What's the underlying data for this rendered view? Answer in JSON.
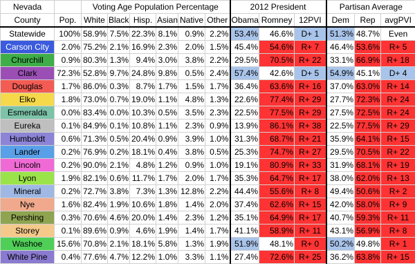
{
  "groups": {
    "state": "Nevada",
    "vap": "Voting Age Population Percentage",
    "pres": "2012 President",
    "partisan": "Partisan Average"
  },
  "columns": [
    "County",
    "Pop.",
    "White",
    "Black",
    "Hisp.",
    "Asian",
    "Native",
    "Other",
    "Obama",
    "Romney",
    "12PVI",
    "Dem",
    "Rep",
    "avgPVI"
  ],
  "colors": {
    "dem_fill": "#a9c4ea",
    "rep_fill": "#ff3333"
  },
  "rows": [
    {
      "county": "Statewide",
      "bg": "#ffffff",
      "fg": "#000000",
      "pop": "100%",
      "white": "58.9%",
      "black": "7.5%",
      "hisp": "22.3%",
      "asian": "8.1%",
      "native": "0.9%",
      "other": "2.2%",
      "obama": "53.4%",
      "romney": "46.6%",
      "pvi": "D+ 1",
      "dem": "51.3%",
      "rep": "48.7%",
      "avgpvi": "Even",
      "win": "D",
      "pvi_side": "D",
      "part_win": "D",
      "avg_side": "E"
    },
    {
      "county": "Carson City",
      "bg": "#3b5bde",
      "fg": "#ffffff",
      "pop": "2.0%",
      "white": "75.2%",
      "black": "2.1%",
      "hisp": "16.9%",
      "asian": "2.3%",
      "native": "2.0%",
      "other": "1.5%",
      "obama": "45.4%",
      "romney": "54.6%",
      "pvi": "R+ 7",
      "dem": "46.4%",
      "rep": "53.6%",
      "avgpvi": "R+ 5",
      "win": "R",
      "pvi_side": "R",
      "part_win": "R",
      "avg_side": "R"
    },
    {
      "county": "Churchill",
      "bg": "#3fae49",
      "fg": "#000000",
      "pop": "0.9%",
      "white": "80.3%",
      "black": "1.3%",
      "hisp": "9.4%",
      "asian": "3.0%",
      "native": "3.8%",
      "other": "2.2%",
      "obama": "29.5%",
      "romney": "70.5%",
      "pvi": "R+ 22",
      "dem": "33.1%",
      "rep": "66.9%",
      "avgpvi": "R+ 18",
      "win": "R",
      "pvi_side": "R",
      "part_win": "R",
      "avg_side": "R"
    },
    {
      "county": "Clark",
      "bg": "#9b4fb5",
      "fg": "#000000",
      "pop": "72.3%",
      "white": "52.8%",
      "black": "9.7%",
      "hisp": "24.8%",
      "asian": "9.8%",
      "native": "0.5%",
      "other": "2.4%",
      "obama": "57.4%",
      "romney": "42.6%",
      "pvi": "D+ 5",
      "dem": "54.9%",
      "rep": "45.1%",
      "avgpvi": "D+ 4",
      "win": "D",
      "pvi_side": "D",
      "part_win": "D",
      "avg_side": "D"
    },
    {
      "county": "Douglas",
      "bg": "#f25c54",
      "fg": "#000000",
      "pop": "1.7%",
      "white": "86.0%",
      "black": "0.3%",
      "hisp": "8.7%",
      "asian": "1.7%",
      "native": "1.5%",
      "other": "1.7%",
      "obama": "36.4%",
      "romney": "63.6%",
      "pvi": "R+ 16",
      "dem": "37.0%",
      "rep": "63.0%",
      "avgpvi": "R+ 14",
      "win": "R",
      "pvi_side": "R",
      "part_win": "R",
      "avg_side": "R"
    },
    {
      "county": "Elko",
      "bg": "#f5d94a",
      "fg": "#000000",
      "pop": "1.8%",
      "white": "73.0%",
      "black": "0.7%",
      "hisp": "19.0%",
      "asian": "1.1%",
      "native": "4.8%",
      "other": "1.3%",
      "obama": "22.6%",
      "romney": "77.4%",
      "pvi": "R+ 29",
      "dem": "27.7%",
      "rep": "72.3%",
      "avgpvi": "R+ 24",
      "win": "R",
      "pvi_side": "R",
      "part_win": "R",
      "avg_side": "R"
    },
    {
      "county": "Esmeralda",
      "bg": "#7cc3a8",
      "fg": "#000000",
      "pop": "0.0%",
      "white": "83.4%",
      "black": "0.0%",
      "hisp": "10.3%",
      "asian": "0.5%",
      "native": "3.5%",
      "other": "2.3%",
      "obama": "22.5%",
      "romney": "77.5%",
      "pvi": "R+ 29",
      "dem": "27.5%",
      "rep": "72.5%",
      "avgpvi": "R+ 24",
      "win": "R",
      "pvi_side": "R",
      "part_win": "R",
      "avg_side": "R"
    },
    {
      "county": "Eureka",
      "bg": "#bfbfbf",
      "fg": "#000000",
      "pop": "0.1%",
      "white": "84.9%",
      "black": "0.1%",
      "hisp": "10.8%",
      "asian": "1.1%",
      "native": "2.3%",
      "other": "0.9%",
      "obama": "13.9%",
      "romney": "86.1%",
      "pvi": "R+ 38",
      "dem": "22.5%",
      "rep": "77.5%",
      "avgpvi": "R+ 29",
      "win": "R",
      "pvi_side": "R",
      "part_win": "R",
      "avg_side": "R"
    },
    {
      "county": "Humboldt",
      "bg": "#8c84d6",
      "fg": "#000000",
      "pop": "0.6%",
      "white": "71.3%",
      "black": "0.5%",
      "hisp": "20.4%",
      "asian": "0.9%",
      "native": "3.9%",
      "other": "1.0%",
      "obama": "31.3%",
      "romney": "68.7%",
      "pvi": "R+ 21",
      "dem": "35.9%",
      "rep": "64.1%",
      "avgpvi": "R+ 15",
      "win": "R",
      "pvi_side": "R",
      "part_win": "R",
      "avg_side": "R"
    },
    {
      "county": "Lander",
      "bg": "#5aa0e8",
      "fg": "#000000",
      "pop": "0.2%",
      "white": "76.9%",
      "black": "0.2%",
      "hisp": "18.1%",
      "asian": "0.4%",
      "native": "3.8%",
      "other": "0.5%",
      "obama": "25.3%",
      "romney": "74.7%",
      "pvi": "R+ 27",
      "dem": "29.5%",
      "rep": "70.5%",
      "avgpvi": "R+ 22",
      "win": "R",
      "pvi_side": "R",
      "part_win": "R",
      "avg_side": "R"
    },
    {
      "county": "Lincoln",
      "bg": "#f06ad6",
      "fg": "#000000",
      "pop": "0.2%",
      "white": "90.0%",
      "black": "2.1%",
      "hisp": "4.8%",
      "asian": "1.2%",
      "native": "0.9%",
      "other": "1.0%",
      "obama": "19.1%",
      "romney": "80.9%",
      "pvi": "R+ 33",
      "dem": "31.9%",
      "rep": "68.1%",
      "avgpvi": "R+ 19",
      "win": "R",
      "pvi_side": "R",
      "part_win": "R",
      "avg_side": "R"
    },
    {
      "county": "Lyon",
      "bg": "#9be34a",
      "fg": "#000000",
      "pop": "1.9%",
      "white": "82.1%",
      "black": "0.6%",
      "hisp": "11.7%",
      "asian": "1.7%",
      "native": "2.0%",
      "other": "1.7%",
      "obama": "35.3%",
      "romney": "64.7%",
      "pvi": "R+ 17",
      "dem": "38.0%",
      "rep": "62.0%",
      "avgpvi": "R+ 13",
      "win": "R",
      "pvi_side": "R",
      "part_win": "R",
      "avg_side": "R"
    },
    {
      "county": "Mineral",
      "bg": "#9fb8e4",
      "fg": "#000000",
      "pop": "0.2%",
      "white": "72.7%",
      "black": "3.8%",
      "hisp": "7.3%",
      "asian": "1.3%",
      "native": "12.8%",
      "other": "2.2%",
      "obama": "44.4%",
      "romney": "55.6%",
      "pvi": "R+ 8",
      "dem": "49.4%",
      "rep": "50.6%",
      "avgpvi": "R+ 2",
      "win": "R",
      "pvi_side": "R",
      "part_win": "R",
      "avg_side": "R"
    },
    {
      "county": "Nye",
      "bg": "#f0a98c",
      "fg": "#000000",
      "pop": "1.6%",
      "white": "82.4%",
      "black": "1.9%",
      "hisp": "10.6%",
      "asian": "1.8%",
      "native": "1.4%",
      "other": "2.0%",
      "obama": "37.4%",
      "romney": "62.6%",
      "pvi": "R+ 15",
      "dem": "42.0%",
      "rep": "58.0%",
      "avgpvi": "R+ 9",
      "win": "R",
      "pvi_side": "R",
      "part_win": "R",
      "avg_side": "R"
    },
    {
      "county": "Pershing",
      "bg": "#8fa450",
      "fg": "#000000",
      "pop": "0.3%",
      "white": "70.6%",
      "black": "4.6%",
      "hisp": "20.0%",
      "asian": "1.4%",
      "native": "2.3%",
      "other": "1.2%",
      "obama": "35.1%",
      "romney": "64.9%",
      "pvi": "R+ 17",
      "dem": "40.7%",
      "rep": "59.3%",
      "avgpvi": "R+ 11",
      "win": "R",
      "pvi_side": "R",
      "part_win": "R",
      "avg_side": "R"
    },
    {
      "county": "Storey",
      "bg": "#f5c98a",
      "fg": "#000000",
      "pop": "0.1%",
      "white": "89.6%",
      "black": "0.9%",
      "hisp": "4.6%",
      "asian": "1.9%",
      "native": "1.4%",
      "other": "1.7%",
      "obama": "41.1%",
      "romney": "58.9%",
      "pvi": "R+ 11",
      "dem": "43.1%",
      "rep": "56.9%",
      "avgpvi": "R+ 8",
      "win": "R",
      "pvi_side": "R",
      "part_win": "R",
      "avg_side": "R"
    },
    {
      "county": "Washoe",
      "bg": "#4fcf57",
      "fg": "#000000",
      "pop": "15.6%",
      "white": "70.8%",
      "black": "2.1%",
      "hisp": "18.1%",
      "asian": "5.8%",
      "native": "1.3%",
      "other": "1.9%",
      "obama": "51.9%",
      "romney": "48.1%",
      "pvi": "R+ 0",
      "dem": "50.2%",
      "rep": "49.8%",
      "avgpvi": "R+ 1",
      "win": "D",
      "pvi_side": "R",
      "part_win": "D",
      "avg_side": "R"
    },
    {
      "county": "White Pine",
      "bg": "#8a7ad0",
      "fg": "#000000",
      "pop": "0.4%",
      "white": "77.6%",
      "black": "4.7%",
      "hisp": "12.2%",
      "asian": "1.0%",
      "native": "3.3%",
      "other": "1.1%",
      "obama": "27.4%",
      "romney": "72.6%",
      "pvi": "R+ 25",
      "dem": "36.2%",
      "rep": "63.8%",
      "avgpvi": "R+ 15",
      "win": "R",
      "pvi_side": "R",
      "part_win": "R",
      "avg_side": "R"
    }
  ]
}
